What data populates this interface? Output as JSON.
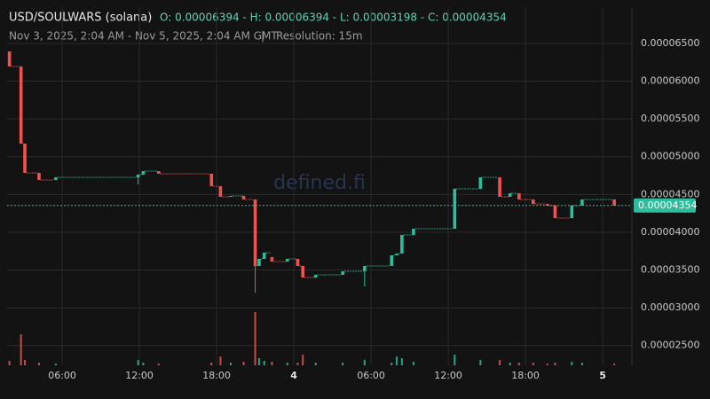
{
  "chart_data": {
    "type": "candlestick",
    "title": "USD/SOULWARS (solana)",
    "ohlc_summary": "O: 0.00006394 - H: 0.00006394 - L: 0.00003198 - C: 0.00004354",
    "date_range": "Nov 3, 2025, 2:04 AM - Nov 5, 2025, 2:04 AM GMT",
    "resolution": "Resolution: 15m",
    "watermark": "defined.fi",
    "up_color": "#2bbd9c",
    "down_color": "#ef5350",
    "grid": true,
    "x": [
      1.9,
      2.8,
      3.1,
      4.2,
      5.5,
      11.9,
      12.3,
      13.5,
      17.6,
      18.3,
      19.1,
      20.1,
      21.0,
      21.3,
      21.7,
      22.3,
      23.5,
      24.3,
      24.7,
      25.7,
      27.8,
      29.5,
      31.6,
      32.0,
      32.4,
      33.3,
      36.5,
      38.5,
      40.0,
      40.8,
      41.5,
      42.6,
      43.7,
      44.3,
      45.6,
      46.4,
      48.9
    ],
    "open": [
      6.394e-05,
      6.195e-05,
      5.173e-05,
      4.786e-05,
      4.692e-05,
      4.727e-05,
      4.763e-05,
      4.809e-05,
      4.774e-05,
      4.61e-05,
      4.469e-05,
      4.481e-05,
      4.434e-05,
      3.553e-05,
      3.647e-05,
      3.671e-05,
      3.612e-05,
      3.647e-05,
      3.553e-05,
      3.401e-05,
      3.436e-05,
      3.483e-05,
      3.553e-05,
      3.694e-05,
      3.718e-05,
      3.964e-05,
      4.046e-05,
      4.575e-05,
      4.727e-05,
      4.469e-05,
      4.516e-05,
      4.434e-05,
      4.375e-05,
      4.352e-05,
      4.187e-05,
      4.352e-05,
      4.434e-05
    ],
    "high": [
      6.394e-05,
      6.195e-05,
      5.173e-05,
      4.786e-05,
      4.727e-05,
      4.763e-05,
      4.809e-05,
      4.809e-05,
      4.774e-05,
      4.61e-05,
      4.481e-05,
      4.481e-05,
      4.434e-05,
      3.647e-05,
      3.729e-05,
      3.671e-05,
      3.647e-05,
      3.647e-05,
      3.553e-05,
      3.436e-05,
      3.483e-05,
      3.553e-05,
      3.694e-05,
      3.718e-05,
      3.964e-05,
      4.046e-05,
      4.575e-05,
      4.727e-05,
      4.727e-05,
      4.516e-05,
      4.516e-05,
      4.434e-05,
      4.375e-05,
      4.352e-05,
      4.352e-05,
      4.434e-05,
      4.434e-05
    ],
    "low": [
      6.195e-05,
      5.173e-05,
      4.786e-05,
      4.692e-05,
      4.692e-05,
      4.633e-05,
      4.763e-05,
      4.774e-05,
      4.61e-05,
      4.469e-05,
      4.469e-05,
      4.434e-05,
      3.198e-05,
      3.553e-05,
      3.647e-05,
      3.612e-05,
      3.612e-05,
      3.553e-05,
      3.401e-05,
      3.401e-05,
      3.436e-05,
      3.283e-05,
      3.553e-05,
      3.694e-05,
      3.718e-05,
      3.964e-05,
      4.046e-05,
      4.575e-05,
      4.469e-05,
      4.469e-05,
      4.434e-05,
      4.375e-05,
      4.352e-05,
      4.187e-05,
      4.187e-05,
      4.352e-05,
      4.354e-05
    ],
    "close": [
      6.195e-05,
      5.173e-05,
      4.786e-05,
      4.692e-05,
      4.727e-05,
      4.763e-05,
      4.809e-05,
      4.774e-05,
      4.61e-05,
      4.469e-05,
      4.481e-05,
      4.434e-05,
      3.553e-05,
      3.647e-05,
      3.729e-05,
      3.612e-05,
      3.647e-05,
      3.553e-05,
      3.401e-05,
      3.436e-05,
      3.483e-05,
      3.553e-05,
      3.694e-05,
      3.718e-05,
      3.964e-05,
      4.046e-05,
      4.575e-05,
      4.727e-05,
      4.469e-05,
      4.516e-05,
      4.434e-05,
      4.375e-05,
      4.352e-05,
      4.187e-05,
      4.352e-05,
      4.434e-05,
      4.354e-05
    ],
    "volume": [
      5,
      35,
      6,
      3,
      2,
      6,
      3,
      2,
      3,
      10,
      3,
      4,
      60,
      8,
      5,
      4,
      3,
      3,
      12,
      3,
      3,
      6,
      3,
      10,
      8,
      4,
      12,
      6,
      6,
      3,
      3,
      3,
      2,
      3,
      4,
      3,
      2
    ],
    "last_price": {
      "value": 4.354e-05,
      "label": "0.00004354"
    },
    "xlim": [
      1.72,
      50.27
    ],
    "xticks": [
      {
        "value": 6,
        "label": "06:00"
      },
      {
        "value": 12,
        "label": "12:00"
      },
      {
        "value": 18,
        "label": "18:00"
      },
      {
        "value": 24,
        "label": "4"
      },
      {
        "value": 30,
        "label": "06:00"
      },
      {
        "value": 36,
        "label": "12:00"
      },
      {
        "value": 42,
        "label": "18:00"
      },
      {
        "value": 48,
        "label": "5"
      }
    ],
    "ylim": [
      2.238e-05,
      6.981e-05
    ],
    "yticks": [
      {
        "value": 2.5e-05,
        "label": "0.00002500"
      },
      {
        "value": 3e-05,
        "label": "0.00003000"
      },
      {
        "value": 3.5e-05,
        "label": "0.00003500"
      },
      {
        "value": 4e-05,
        "label": "0.00004000"
      },
      {
        "value": 4.5e-05,
        "label": "0.00004500"
      },
      {
        "value": 5e-05,
        "label": "0.00005000"
      },
      {
        "value": 5.5e-05,
        "label": "0.00005500"
      },
      {
        "value": 6e-05,
        "label": "0.00006000"
      },
      {
        "value": 6.5e-05,
        "label": "0.00006500"
      }
    ]
  }
}
